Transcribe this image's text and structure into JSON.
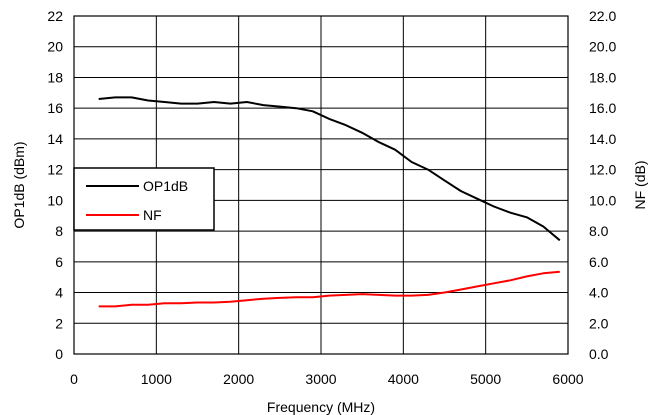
{
  "chart_data": {
    "type": "line",
    "xlabel": "Frequency (MHz)",
    "ylabel": "OP1dB  (dBm)",
    "y2label": "NF (dB)",
    "xlim": [
      0,
      6000
    ],
    "ylim": [
      0,
      22
    ],
    "y2lim": [
      0,
      22
    ],
    "x_ticks": [
      "0",
      "1000",
      "2000",
      "3000",
      "4000",
      "5000",
      "6000"
    ],
    "y_ticks": [
      "0",
      "2",
      "4",
      "6",
      "8",
      "10",
      "12",
      "14",
      "16",
      "18",
      "20",
      "22"
    ],
    "y2_ticks": [
      "0.0",
      "2.0",
      "4.0",
      "6.0",
      "8.0",
      "10.0",
      "12.0",
      "14.0",
      "16.0",
      "18.0",
      "20.0",
      "22.0"
    ],
    "grid": true,
    "legend_position": "left-middle",
    "series": [
      {
        "name": "OP1dB",
        "color": "#000000",
        "axis": "left",
        "x": [
          300,
          500,
          700,
          900,
          1100,
          1300,
          1500,
          1700,
          1900,
          2100,
          2300,
          2500,
          2700,
          2900,
          3100,
          3300,
          3500,
          3700,
          3900,
          4100,
          4300,
          4500,
          4700,
          4900,
          5100,
          5300,
          5500,
          5700,
          5900
        ],
        "y": [
          16.6,
          16.7,
          16.7,
          16.5,
          16.4,
          16.3,
          16.3,
          16.4,
          16.3,
          16.4,
          16.2,
          16.1,
          16.0,
          15.8,
          15.3,
          14.9,
          14.4,
          13.8,
          13.3,
          12.5,
          12.0,
          11.3,
          10.6,
          10.1,
          9.6,
          9.2,
          8.9,
          8.3,
          7.4
        ]
      },
      {
        "name": "NF",
        "color": "#ff0000",
        "axis": "right",
        "x": [
          300,
          500,
          700,
          900,
          1100,
          1300,
          1500,
          1700,
          1900,
          2100,
          2300,
          2500,
          2700,
          2900,
          3100,
          3300,
          3500,
          3700,
          3900,
          4100,
          4300,
          4500,
          4700,
          4900,
          5100,
          5300,
          5500,
          5700,
          5900
        ],
        "y": [
          3.1,
          3.1,
          3.2,
          3.2,
          3.3,
          3.3,
          3.35,
          3.35,
          3.4,
          3.5,
          3.6,
          3.65,
          3.7,
          3.7,
          3.8,
          3.85,
          3.9,
          3.85,
          3.8,
          3.8,
          3.85,
          4.0,
          4.2,
          4.4,
          4.6,
          4.8,
          5.05,
          5.25,
          5.35
        ]
      }
    ]
  }
}
